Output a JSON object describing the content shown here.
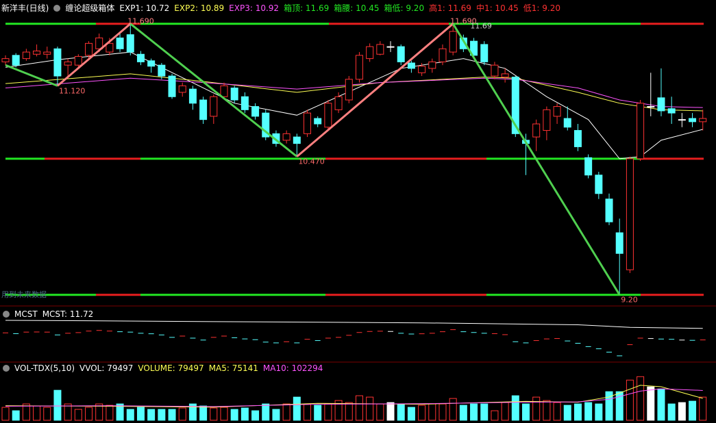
{
  "header": {
    "stock": "新洋丰(日线)",
    "indicator": "缠论超级箱体",
    "items": [
      {
        "text": "EXP1: 10.72",
        "color": "#ffffff"
      },
      {
        "text": "EXP2: 10.89",
        "color": "#ffff54"
      },
      {
        "text": "EXP3: 10.92",
        "color": "#ff54ff"
      },
      {
        "text": "箱顶: 11.69",
        "color": "#22e622"
      },
      {
        "text": "箱腰: 10.45",
        "color": "#22e622"
      },
      {
        "text": "箱低: 9.20",
        "color": "#22e622"
      },
      {
        "text": "高1: 11.69",
        "color": "#ff3232"
      },
      {
        "text": "中1: 10.45",
        "color": "#ff3232"
      },
      {
        "text": "低1: 9.20",
        "color": "#ff3232"
      }
    ]
  },
  "chart_data": [
    {
      "type": "candlestick",
      "ylim": [
        9.11,
        11.77
      ],
      "up_color": "#ff3232",
      "down_color": "#54ffff",
      "flat_color": "#ffffff",
      "open": [
        11.34,
        11.4,
        11.37,
        11.41,
        11.41,
        11.46,
        11.31,
        11.31,
        11.4,
        11.46,
        11.43,
        11.56,
        11.59,
        11.41,
        11.35,
        11.31,
        11.21,
        11.06,
        11.09,
        10.99,
        10.84,
        11.02,
        11.1,
        11.02,
        10.93,
        10.87,
        10.68,
        10.62,
        10.65,
        10.68,
        10.82,
        10.74,
        10.9,
        10.99,
        11.18,
        11.37,
        11.41,
        11.48,
        11.48,
        11.33,
        11.24,
        11.28,
        11.34,
        11.43,
        11.56,
        11.53,
        11.5,
        11.21,
        11.2,
        11.2,
        10.62,
        10.65,
        10.71,
        10.84,
        10.82,
        10.71,
        10.46,
        10.3,
        10.08,
        9.77,
        9.43,
        10.45,
        10.93,
        11.01,
        10.91,
        10.81,
        10.82,
        10.79
      ],
      "high": [
        11.4,
        11.42,
        11.46,
        11.5,
        11.48,
        11.48,
        11.37,
        11.41,
        11.53,
        11.6,
        11.56,
        11.6,
        11.69,
        11.44,
        11.37,
        11.33,
        11.23,
        11.15,
        11.12,
        11.02,
        11.04,
        11.15,
        11.12,
        11.06,
        10.96,
        10.9,
        10.71,
        10.71,
        10.68,
        10.9,
        10.84,
        10.99,
        11.06,
        11.21,
        11.43,
        11.51,
        11.53,
        11.53,
        11.5,
        11.35,
        11.33,
        11.37,
        11.5,
        11.69,
        11.59,
        11.56,
        11.53,
        11.34,
        11.28,
        11.21,
        10.68,
        10.81,
        10.93,
        10.96,
        10.93,
        10.77,
        10.49,
        10.33,
        10.13,
        9.9,
        10.47,
        10.99,
        11.24,
        11.28,
        11.02,
        10.87,
        10.87,
        10.9
      ],
      "low": [
        11.31,
        11.29,
        11.35,
        11.39,
        11.37,
        11.12,
        11.21,
        11.28,
        11.37,
        11.43,
        11.4,
        11.43,
        11.4,
        11.31,
        11.24,
        11.18,
        11.0,
        11.02,
        10.9,
        10.77,
        10.77,
        11.0,
        10.96,
        10.87,
        10.81,
        10.62,
        10.56,
        10.59,
        10.47,
        10.65,
        10.74,
        10.71,
        10.87,
        10.96,
        11.15,
        11.34,
        11.4,
        11.43,
        11.31,
        11.24,
        11.21,
        11.24,
        11.31,
        11.4,
        11.43,
        11.37,
        11.31,
        11.18,
        11.15,
        10.65,
        10.3,
        10.52,
        10.62,
        10.77,
        10.71,
        10.52,
        10.27,
        10.08,
        9.84,
        9.2,
        9.4,
        10.43,
        10.84,
        10.84,
        10.77,
        10.74,
        10.74,
        10.71
      ],
      "close": [
        11.37,
        11.31,
        11.43,
        11.44,
        11.43,
        11.21,
        11.34,
        11.39,
        11.51,
        11.56,
        11.51,
        11.46,
        11.43,
        11.34,
        11.3,
        11.21,
        11.02,
        11.12,
        10.96,
        10.81,
        11.02,
        11.12,
        10.99,
        10.9,
        10.84,
        10.65,
        10.59,
        10.68,
        10.59,
        10.87,
        10.77,
        10.96,
        11.02,
        11.18,
        11.4,
        11.48,
        11.5,
        11.48,
        11.34,
        11.28,
        11.3,
        11.34,
        11.46,
        11.62,
        11.46,
        11.4,
        11.34,
        11.31,
        11.23,
        10.68,
        10.59,
        10.77,
        10.9,
        10.93,
        10.74,
        10.56,
        10.3,
        10.13,
        9.87,
        9.58,
        10.45,
        10.96,
        10.93,
        10.89,
        10.87,
        10.81,
        10.79,
        10.82
      ],
      "box_lines": {
        "values": [
          11.69,
          10.45,
          9.2
        ],
        "colors": [
          "#22e622",
          "#e61e1e"
        ]
      },
      "series": [
        {
          "color": "#ffffff",
          "x": [
            0,
            5,
            12,
            22,
            28,
            38,
            44,
            48,
            52,
            56,
            59,
            61,
            63,
            67
          ],
          "values": [
            11.29,
            11.36,
            11.43,
            10.96,
            10.85,
            11.28,
            11.37,
            11.28,
            11.02,
            10.81,
            10.45,
            10.47,
            10.62,
            10.72
          ]
        },
        {
          "color": "#ffff54",
          "x": [
            0,
            12,
            19,
            28,
            36,
            46,
            49,
            55,
            59,
            63,
            67
          ],
          "values": [
            11.14,
            11.23,
            11.16,
            11.06,
            11.15,
            11.2,
            11.19,
            11.06,
            10.96,
            10.9,
            10.89
          ]
        },
        {
          "color": "#ff54ff",
          "x": [
            0,
            12,
            19,
            28,
            36,
            46,
            49,
            55,
            59,
            63,
            67
          ],
          "values": [
            11.1,
            11.19,
            11.15,
            11.09,
            11.15,
            11.19,
            11.18,
            11.1,
            10.99,
            10.93,
            10.92
          ]
        }
      ],
      "zigzag": {
        "up_color": "#ff8080",
        "down_color": "#4fcf4f",
        "x": [
          0,
          5,
          12,
          28,
          43,
          59
        ],
        "values": [
          11.31,
          11.12,
          11.69,
          10.47,
          11.69,
          9.2
        ],
        "value_labels": [
          null,
          "11.120",
          "11.690",
          "10.470",
          "11.690",
          "9.20"
        ]
      },
      "annotations": [
        {
          "text": "11.69",
          "x": 44,
          "y": 11.69
        }
      ],
      "note": "用到未来数据"
    },
    {
      "type": "mcst",
      "title": "MCST",
      "legend": "MCST: 11.72",
      "ylim": [
        9.2,
        13.2
      ],
      "series": [
        {
          "color": "#ffffff",
          "x": [
            0,
            20,
            40,
            55,
            60,
            67
          ],
          "values": [
            12.35,
            12.25,
            12.15,
            12.0,
            11.8,
            11.72
          ]
        }
      ]
    },
    {
      "type": "bar",
      "title": "VOL-TDX(5,10)",
      "ylim": [
        0,
        155000
      ],
      "legend": [
        {
          "text": "VVOL: 79497",
          "color": "#ffffff"
        },
        {
          "text": "VOLUME: 79497",
          "color": "#ffff54"
        },
        {
          "text": "MA5: 75141",
          "color": "#ffff54"
        },
        {
          "text": "MA10: 102294",
          "color": "#ff54ff"
        }
      ],
      "values": [
        44400,
        32700,
        56100,
        49100,
        44400,
        102900,
        56100,
        37400,
        44400,
        56100,
        51400,
        56100,
        37400,
        44400,
        37400,
        37400,
        37400,
        42100,
        56100,
        49100,
        42100,
        44400,
        37400,
        42100,
        32700,
        56100,
        37400,
        56100,
        79500,
        56100,
        51400,
        56100,
        67800,
        60800,
        84200,
        79500,
        56100,
        60800,
        56100,
        44400,
        51400,
        56100,
        56100,
        74800,
        51400,
        56100,
        56100,
        32700,
        60800,
        84200,
        56100,
        79500,
        67800,
        60800,
        51400,
        56100,
        60800,
        56100,
        98200,
        98200,
        137900,
        149600,
        114600,
        107500,
        56100,
        60800,
        65500,
        79497
      ],
      "series": [
        {
          "color": "#ffff54",
          "x": [
            0,
            10,
            20,
            30,
            40,
            50,
            55,
            58,
            61,
            63,
            67
          ],
          "values": [
            50000,
            48000,
            45000,
            58000,
            55000,
            65000,
            62000,
            80000,
            120000,
            115000,
            75141
          ]
        },
        {
          "color": "#ff54ff",
          "x": [
            0,
            10,
            20,
            30,
            40,
            50,
            55,
            58,
            61,
            63,
            67
          ],
          "values": [
            48000,
            50000,
            47000,
            55000,
            57000,
            62000,
            63000,
            72000,
            100000,
            108000,
            102294
          ]
        }
      ]
    }
  ]
}
